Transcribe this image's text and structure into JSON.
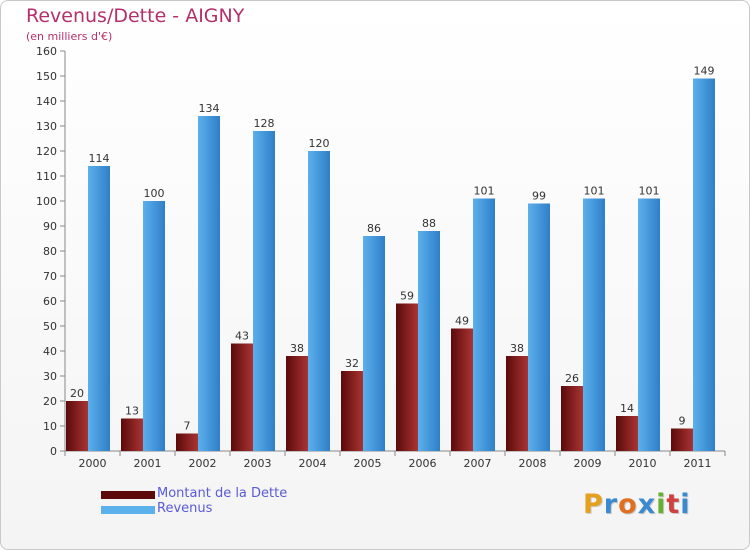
{
  "title": "Revenus/Dette - AIGNY",
  "subtitle": "(en milliers d'€)",
  "colors": {
    "dette_dark": "#5c0a0a",
    "dette_light": "#a93434",
    "revenus_dark": "#2f7fc8",
    "revenus_light": "#5cb0ec",
    "title": "#b4306a",
    "legend_text": "#5a5ad8"
  },
  "chart_data": {
    "type": "bar",
    "title": "Revenus/Dette - AIGNY",
    "subtitle": "(en milliers d'€)",
    "categories": [
      "2000",
      "2001",
      "2002",
      "2003",
      "2004",
      "2005",
      "2006",
      "2007",
      "2008",
      "2009",
      "2010",
      "2011"
    ],
    "series": [
      {
        "name": "Montant de la Dette",
        "values": [
          20,
          13,
          7,
          43,
          38,
          32,
          59,
          49,
          38,
          26,
          14,
          9
        ]
      },
      {
        "name": "Revenus",
        "values": [
          114,
          100,
          134,
          128,
          120,
          86,
          88,
          101,
          99,
          101,
          101,
          149
        ]
      }
    ],
    "ylim": [
      0,
      160
    ],
    "yticks": [
      0,
      10,
      20,
      30,
      40,
      50,
      60,
      70,
      80,
      90,
      100,
      110,
      120,
      130,
      140,
      150,
      160
    ],
    "grid": false,
    "legend": "bottom-left"
  },
  "logo": {
    "letters": [
      "P",
      "r",
      "o",
      "x",
      "i",
      "t",
      "i"
    ],
    "colors": [
      "#e5a020",
      "#3a8ad0",
      "#e07020",
      "#3a8ad0",
      "#66b032",
      "#d04040",
      "#3a8ad0"
    ]
  }
}
